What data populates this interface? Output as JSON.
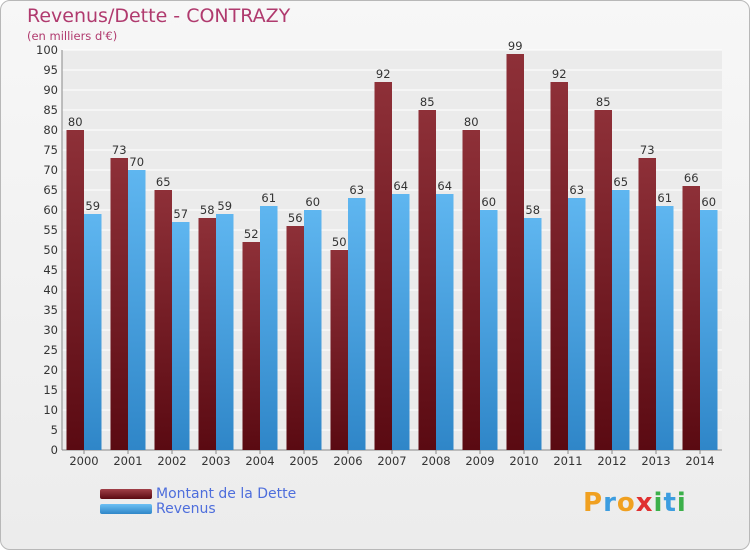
{
  "header": {
    "title": "Revenus/Dette - CONTRAZY",
    "subtitle": "(en milliers d'€)"
  },
  "legend": {
    "items": [
      {
        "label": "Montant de la Dette",
        "color": "#7a1a22"
      },
      {
        "label": "Revenus",
        "color": "#4aa6e6"
      }
    ]
  },
  "logo": {
    "letters": [
      {
        "ch": "P",
        "color": "#f0a020"
      },
      {
        "ch": "r",
        "color": "#3c9de0"
      },
      {
        "ch": "o",
        "color": "#f0a020"
      },
      {
        "ch": "x",
        "color": "#e03030"
      },
      {
        "ch": "i",
        "color": "#3cb04a"
      },
      {
        "ch": "t",
        "color": "#3c9de0"
      },
      {
        "ch": "i",
        "color": "#3cb04a"
      }
    ]
  },
  "chart_data": {
    "type": "bar",
    "title": "Revenus/Dette - CONTRAZY",
    "subtitle": "(en milliers d'€)",
    "categories": [
      "2000",
      "2001",
      "2002",
      "2003",
      "2004",
      "2005",
      "2006",
      "2007",
      "2008",
      "2009",
      "2010",
      "2011",
      "2012",
      "2013",
      "2014"
    ],
    "series": [
      {
        "name": "Montant de la Dette",
        "color": "#7a1a22",
        "values": [
          80,
          73,
          65,
          58,
          52,
          56,
          50,
          92,
          85,
          80,
          99,
          92,
          85,
          73,
          66
        ]
      },
      {
        "name": "Revenus",
        "color": "#4aa6e6",
        "values": [
          59,
          70,
          57,
          59,
          61,
          60,
          63,
          64,
          64,
          60,
          58,
          63,
          65,
          61,
          60
        ]
      }
    ],
    "ylim": [
      0,
      100
    ],
    "ytick_step": 5,
    "grid": true,
    "legend_position": "bottom-left",
    "data_labels": true
  }
}
